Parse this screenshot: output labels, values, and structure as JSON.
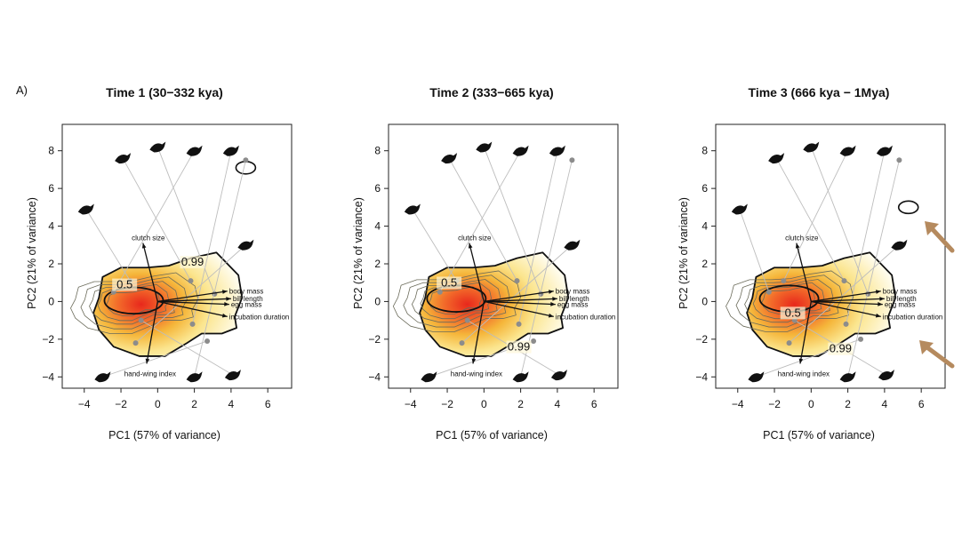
{
  "panel_label": "A)",
  "chart_data": [
    {
      "type": "contour-density",
      "title": "Time 1 (30−332 kya)",
      "xlabel": "PC1 (57% of variance)",
      "ylabel": "PC2 (21% of variance)",
      "xlim": [
        -5.2,
        7.3
      ],
      "ylim": [
        -4.6,
        9.4
      ],
      "xticks": [
        -4,
        -2,
        0,
        2,
        4,
        6
      ],
      "yticks": [
        -4,
        -2,
        0,
        2,
        4,
        6,
        8
      ],
      "xtick_labels": [
        "−4",
        "−2",
        "0",
        "2",
        "4",
        "6"
      ],
      "ytick_labels": [
        "−4",
        "−2",
        "0",
        "2",
        "4",
        "6",
        "8"
      ],
      "contour_labels": [
        "0.5",
        "0.99"
      ],
      "contour_label_pos": [
        [
          -1.8,
          0.7
        ],
        [
          1.9,
          1.9
        ]
      ],
      "density_peak": [
        -1.4,
        0.0
      ],
      "loadings": [
        {
          "name": "clutch size",
          "x": -0.8,
          "y": 3.1
        },
        {
          "name": "body mass",
          "x": 3.8,
          "y": 0.55
        },
        {
          "name": "bill length",
          "x": 4.0,
          "y": 0.15
        },
        {
          "name": "egg mass",
          "x": 3.9,
          "y": -0.15
        },
        {
          "name": "incubation duration",
          "x": 3.8,
          "y": -0.8
        },
        {
          "name": "hand-wing index",
          "x": -0.6,
          "y": -3.3
        }
      ],
      "points": [
        [
          -1.5,
          1.1
        ],
        [
          1.8,
          1.1
        ],
        [
          3.1,
          0.4
        ],
        [
          -2.4,
          0.5
        ],
        [
          1.9,
          -1.2
        ],
        [
          -1.2,
          -2.2
        ],
        [
          2.7,
          -2.1
        ],
        [
          4.8,
          7.5
        ],
        [
          -0.9,
          -1.0
        ]
      ],
      "outlier_contours": [
        [
          4.8,
          7.1
        ]
      ]
    },
    {
      "type": "contour-density",
      "title": "Time 2 (333−665 kya)",
      "xlabel": "PC1 (57% of variance)",
      "ylabel": "PC2 (21% of variance)",
      "xlim": [
        -5.2,
        7.3
      ],
      "ylim": [
        -4.6,
        9.4
      ],
      "xticks": [
        -4,
        -2,
        0,
        2,
        4,
        6
      ],
      "yticks": [
        -4,
        -2,
        0,
        2,
        4,
        6,
        8
      ],
      "xtick_labels": [
        "−4",
        "−2",
        "0",
        "2",
        "4",
        "6"
      ],
      "ytick_labels": [
        "−4",
        "−2",
        "0",
        "2",
        "4",
        "6",
        "8"
      ],
      "contour_labels": [
        "0.5",
        "0.99"
      ],
      "contour_label_pos": [
        [
          -1.9,
          0.8
        ],
        [
          1.9,
          -2.6
        ]
      ],
      "density_peak": [
        -1.6,
        0.1
      ],
      "loadings": [
        {
          "name": "clutch size",
          "x": -0.8,
          "y": 3.1
        },
        {
          "name": "body mass",
          "x": 3.8,
          "y": 0.55
        },
        {
          "name": "bill length",
          "x": 4.0,
          "y": 0.15
        },
        {
          "name": "egg mass",
          "x": 3.9,
          "y": -0.15
        },
        {
          "name": "incubation duration",
          "x": 3.8,
          "y": -0.8
        },
        {
          "name": "hand-wing index",
          "x": -0.6,
          "y": -3.3
        }
      ],
      "points": [
        [
          -1.5,
          1.1
        ],
        [
          1.8,
          1.1
        ],
        [
          3.1,
          0.4
        ],
        [
          -2.4,
          0.5
        ],
        [
          1.9,
          -1.2
        ],
        [
          -1.2,
          -2.2
        ],
        [
          2.7,
          -2.1
        ],
        [
          4.8,
          7.5
        ],
        [
          -0.9,
          -1.0
        ]
      ],
      "outlier_contours": []
    },
    {
      "type": "contour-density",
      "title": "Time 3 (666 kya − 1Mya)",
      "xlabel": "PC1 (57% of variance)",
      "ylabel": "PC2 (21% of variance)",
      "xlim": [
        -5.2,
        7.3
      ],
      "ylim": [
        -4.6,
        9.4
      ],
      "xticks": [
        -4,
        -2,
        0,
        2,
        4,
        6
      ],
      "yticks": [
        -4,
        -2,
        0,
        2,
        4,
        6,
        8
      ],
      "xtick_labels": [
        "−4",
        "−2",
        "0",
        "2",
        "4",
        "6"
      ],
      "ytick_labels": [
        "−4",
        "−2",
        "0",
        "2",
        "4",
        "6",
        "8"
      ],
      "contour_labels": [
        "0.5",
        "0.99"
      ],
      "contour_label_pos": [
        [
          -1.0,
          -0.8
        ],
        [
          1.6,
          -2.7
        ]
      ],
      "density_peak": [
        -1.3,
        0.1
      ],
      "loadings": [
        {
          "name": "clutch size",
          "x": -0.8,
          "y": 3.1
        },
        {
          "name": "body mass",
          "x": 3.8,
          "y": 0.55
        },
        {
          "name": "bill length",
          "x": 4.0,
          "y": 0.15
        },
        {
          "name": "egg mass",
          "x": 3.9,
          "y": -0.15
        },
        {
          "name": "incubation duration",
          "x": 3.8,
          "y": -0.8
        },
        {
          "name": "hand-wing index",
          "x": -0.6,
          "y": -3.3
        }
      ],
      "points": [
        [
          -2.3,
          0.5
        ],
        [
          1.8,
          1.1
        ],
        [
          3.1,
          0.4
        ],
        [
          -1.5,
          1.1
        ],
        [
          1.9,
          -1.2
        ],
        [
          -1.2,
          -2.2
        ],
        [
          2.7,
          -2.0
        ],
        [
          4.8,
          7.5
        ],
        [
          -0.9,
          -1.0
        ]
      ],
      "outlier_contours": [
        [
          5.3,
          5.0
        ]
      ],
      "annotation_arrows": 2,
      "annotation_color": "#b58a5e"
    }
  ],
  "colors": {
    "density_high": "#e8281c",
    "density_mid": "#f5b63a",
    "density_low": "#fdf6c9",
    "contour": "#555555",
    "point": "#8c8c8c",
    "annotation": "#b58a5e"
  }
}
